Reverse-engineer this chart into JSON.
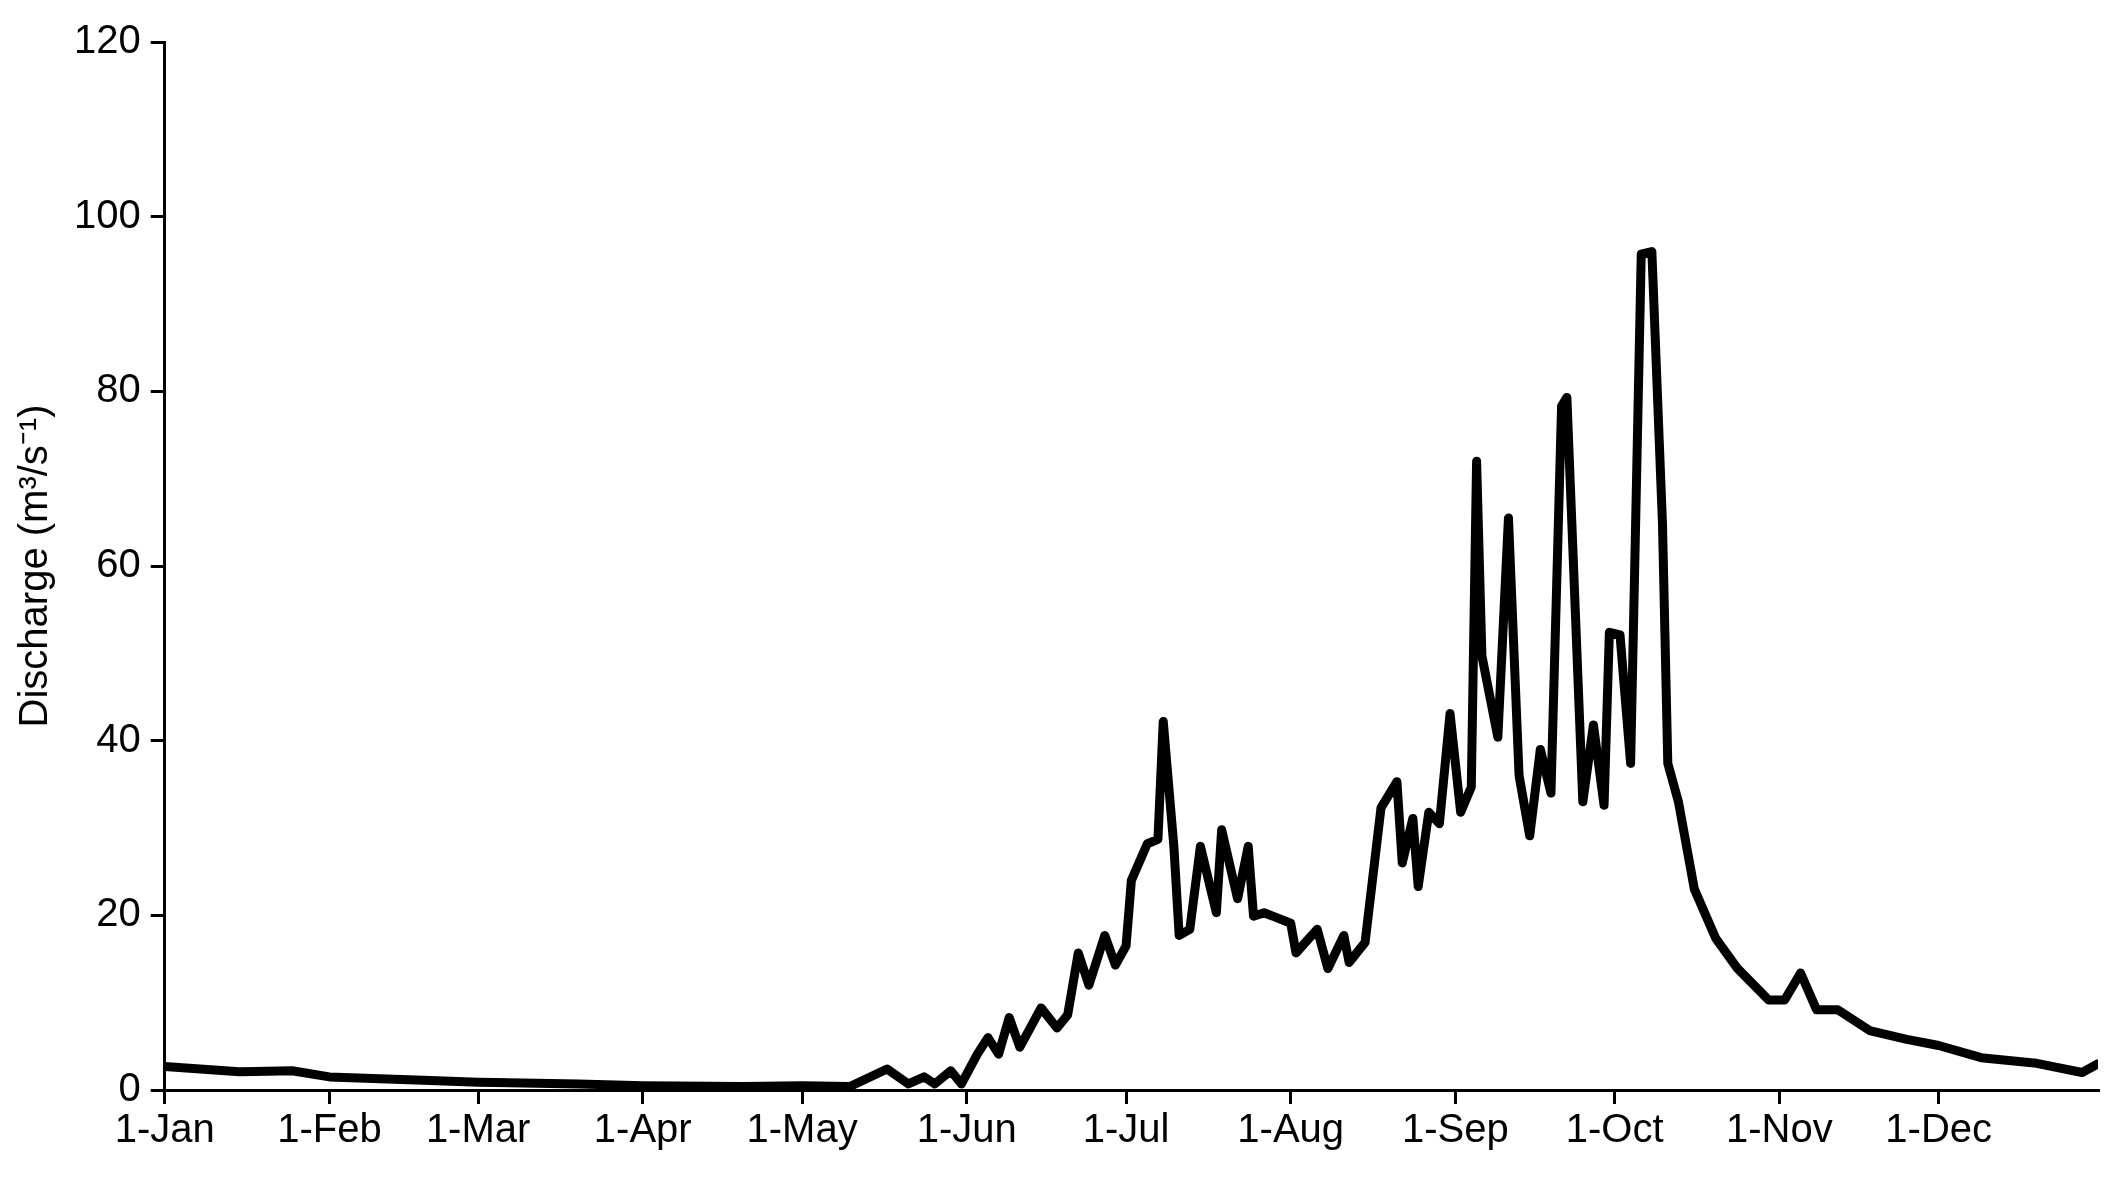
{
  "chart_data": {
    "type": "line",
    "ylabel": "Discharge (m³/s⁻¹)",
    "xlim": [
      "--01-01",
      "--12-31"
    ],
    "xticks": [
      {
        "value": "--01-01",
        "label": "1-Jan"
      },
      {
        "value": "--02-01",
        "label": "1-Feb"
      },
      {
        "value": "--03-01",
        "label": "1-Mar"
      },
      {
        "value": "--04-01",
        "label": "1-Apr"
      },
      {
        "value": "--05-01",
        "label": "1-May"
      },
      {
        "value": "--06-01",
        "label": "1-Jun"
      },
      {
        "value": "--07-01",
        "label": "1-Jul"
      },
      {
        "value": "--08-01",
        "label": "1-Aug"
      },
      {
        "value": "--09-01",
        "label": "1-Sep"
      },
      {
        "value": "--10-01",
        "label": "1-Oct"
      },
      {
        "value": "--11-01",
        "label": "1-Nov"
      },
      {
        "value": "--12-01",
        "label": "1-Dec"
      }
    ],
    "ylim": [
      0,
      120
    ],
    "yticks": [
      0,
      20,
      40,
      60,
      80,
      100,
      120
    ],
    "legend": false,
    "marker": "none",
    "line_style": "solid",
    "series": [
      {
        "color": "#000000",
        "x": [
          "--01-01",
          "--01-15",
          "--01-25",
          "--02-01",
          "--02-20",
          "--03-01",
          "--03-20",
          "--04-01",
          "--04-20",
          "--05-01",
          "--05-10",
          "--05-17",
          "--05-21",
          "--05-24",
          "--05-26",
          "--05-29",
          "--05-31",
          "--06-03",
          "--06-05",
          "--06-07",
          "--06-09",
          "--06-11",
          "--06-15",
          "--06-18",
          "--06-20",
          "--06-22",
          "--06-24",
          "--06-27",
          "--06-29",
          "--07-01",
          "--07-02",
          "--07-05",
          "--07-07",
          "--07-08",
          "--07-10",
          "--07-11",
          "--07-13",
          "--07-15",
          "--07-18",
          "--07-19",
          "--07-22",
          "--07-24",
          "--07-25",
          "--07-27",
          "--08-01",
          "--08-02",
          "--08-06",
          "--08-08",
          "--08-11",
          "--08-12",
          "--08-15",
          "--08-18",
          "--08-21",
          "--08-22",
          "--08-24",
          "--08-25",
          "--08-27",
          "--08-29",
          "--08-31",
          "--09-02",
          "--09-04",
          "--09-05",
          "--09-06",
          "--09-09",
          "--09-11",
          "--09-13",
          "--09-15",
          "--09-17",
          "--09-19",
          "--09-21",
          "--09-22",
          "--09-25",
          "--09-27",
          "--09-29",
          "--09-30",
          "--10-02",
          "--10-04",
          "--10-06",
          "--10-08",
          "--10-10",
          "--10-11",
          "--10-13",
          "--10-16",
          "--10-20",
          "--10-24",
          "--10-30",
          "--11-02",
          "--11-05",
          "--11-08",
          "--11-12",
          "--11-18",
          "--11-25",
          "--12-01",
          "--12-09",
          "--12-19",
          "--12-28",
          "--12-31"
        ],
        "values": [
          2.7,
          2.1,
          2.2,
          1.5,
          1.1,
          0.9,
          0.7,
          0.5,
          0.4,
          0.5,
          0.4,
          2.4,
          0.7,
          1.5,
          0.7,
          2.2,
          0.7,
          4.1,
          6,
          4.1,
          8.3,
          4.9,
          9.4,
          7.1,
          8.6,
          15.7,
          12,
          17.7,
          14.3,
          16.5,
          24,
          28.2,
          28.7,
          42.2,
          27.9,
          17.7,
          18.4,
          27.9,
          20.3,
          29.8,
          21.9,
          27.9,
          19.9,
          20.3,
          19.1,
          15.7,
          18.4,
          13.9,
          17.7,
          14.6,
          16.9,
          32.3,
          35.3,
          26,
          31.1,
          23.3,
          31.8,
          30.5,
          43.1,
          31.8,
          34.7,
          72,
          49.7,
          40.4,
          65.5,
          36,
          29.1,
          39,
          34,
          78.3,
          79.3,
          33,
          41.8,
          32.6,
          52.4,
          52.1,
          37.4,
          95.7,
          96,
          64.8,
          37.4,
          33,
          23,
          17.4,
          14,
          10.3,
          10.3,
          13.4,
          9.2,
          9.2,
          6.8,
          5.8,
          5.1,
          3.7,
          3.1,
          2,
          3
        ]
      }
    ]
  }
}
